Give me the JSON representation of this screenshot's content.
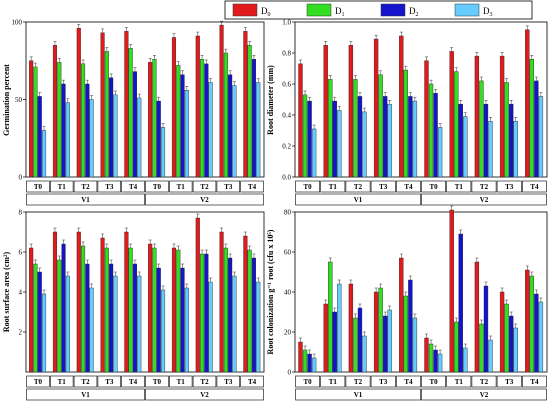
{
  "legend": [
    {
      "name": "D",
      "sub": "0",
      "color": "#e31a1c"
    },
    {
      "name": "D",
      "sub": "1",
      "color": "#33dd22"
    },
    {
      "name": "D",
      "sub": "2",
      "color": "#1414cc"
    },
    {
      "name": "D",
      "sub": "3",
      "color": "#66ccff"
    }
  ],
  "chart_data": [
    {
      "type": "bar",
      "ylabel": "Germination percent",
      "ylim": [
        0,
        100
      ],
      "yticks": [
        0,
        50,
        100
      ],
      "categories": [
        "T0",
        "T1",
        "T2",
        "T3",
        "T4",
        "T0",
        "T1",
        "T2",
        "T3",
        "T4"
      ],
      "groups": [
        "V1",
        "V2"
      ],
      "series": [
        {
          "name": "D0",
          "values": [
            75,
            85,
            96,
            93,
            94,
            74,
            90,
            91,
            98,
            94
          ]
        },
        {
          "name": "D1",
          "values": [
            71,
            74,
            73,
            81,
            83,
            76,
            72,
            76,
            80,
            85
          ]
        },
        {
          "name": "D2",
          "values": [
            52,
            60,
            60,
            64,
            68,
            49,
            66,
            73,
            66,
            76
          ]
        },
        {
          "name": "D3",
          "values": [
            30,
            48,
            50,
            53,
            51,
            32,
            56,
            61,
            59,
            61
          ]
        }
      ]
    },
    {
      "type": "bar",
      "ylabel": "Root diameter (mm)",
      "ylim": [
        0,
        1.0
      ],
      "yticks": [
        0.0,
        0.2,
        0.4,
        0.6,
        0.8,
        1.0
      ],
      "categories": [
        "T0",
        "T1",
        "T2",
        "T3",
        "T4",
        "T0",
        "T1",
        "T2",
        "T3",
        "T4"
      ],
      "groups": [
        "V1",
        "V2"
      ],
      "series": [
        {
          "name": "D0",
          "values": [
            0.73,
            0.85,
            0.85,
            0.89,
            0.91,
            0.75,
            0.81,
            0.78,
            0.78,
            0.95
          ]
        },
        {
          "name": "D1",
          "values": [
            0.53,
            0.63,
            0.63,
            0.66,
            0.69,
            0.6,
            0.68,
            0.62,
            0.61,
            0.76
          ]
        },
        {
          "name": "D2",
          "values": [
            0.49,
            0.49,
            0.52,
            0.52,
            0.52,
            0.54,
            0.47,
            0.47,
            0.47,
            0.62
          ]
        },
        {
          "name": "D3",
          "values": [
            0.31,
            0.43,
            0.42,
            0.47,
            0.49,
            0.32,
            0.39,
            0.36,
            0.36,
            0.52
          ]
        }
      ]
    },
    {
      "type": "bar",
      "ylabel": "Root surface area (cm²)",
      "ylim": [
        0,
        8
      ],
      "yticks": [
        2,
        4,
        6,
        8
      ],
      "categories": [
        "T0",
        "T1",
        "T2",
        "T3",
        "T4",
        "T0",
        "T1",
        "T2",
        "T3",
        "T4"
      ],
      "groups": [
        "V1",
        "V2"
      ],
      "series": [
        {
          "name": "D0",
          "values": [
            6.2,
            7.0,
            7.0,
            6.7,
            7.0,
            6.4,
            6.2,
            7.7,
            7.0,
            6.8
          ]
        },
        {
          "name": "D1",
          "values": [
            5.4,
            5.6,
            6.3,
            6.2,
            6.2,
            6.2,
            6.1,
            5.9,
            6.2,
            6.1
          ]
        },
        {
          "name": "D2",
          "values": [
            5.0,
            6.4,
            5.4,
            5.4,
            5.4,
            5.2,
            5.2,
            5.9,
            5.7,
            5.7
          ]
        },
        {
          "name": "D3",
          "values": [
            3.9,
            4.8,
            4.2,
            4.8,
            4.8,
            4.1,
            4.2,
            4.5,
            4.8,
            4.5
          ]
        }
      ]
    },
    {
      "type": "bar",
      "ylabel": "Root colonization g⁻¹ root (cfu x 10⁵)",
      "ylim": [
        0,
        80
      ],
      "yticks": [
        0,
        20,
        40,
        60,
        80
      ],
      "categories": [
        "T0",
        "T1",
        "T2",
        "T3",
        "T4",
        "T0",
        "T1",
        "T2",
        "T3",
        "T4"
      ],
      "groups": [
        "V1",
        "V2"
      ],
      "series": [
        {
          "name": "D0",
          "values": [
            15,
            34,
            44,
            40,
            57,
            17,
            81,
            55,
            40,
            51
          ]
        },
        {
          "name": "D1",
          "values": [
            11,
            55,
            27,
            42,
            38,
            14,
            25,
            24,
            34,
            48
          ]
        },
        {
          "name": "D2",
          "values": [
            9,
            30,
            32,
            28,
            46,
            11,
            69,
            43,
            28,
            39
          ]
        },
        {
          "name": "D3",
          "values": [
            7,
            44,
            18,
            31,
            27,
            9,
            12,
            16,
            22,
            35
          ]
        }
      ]
    }
  ]
}
